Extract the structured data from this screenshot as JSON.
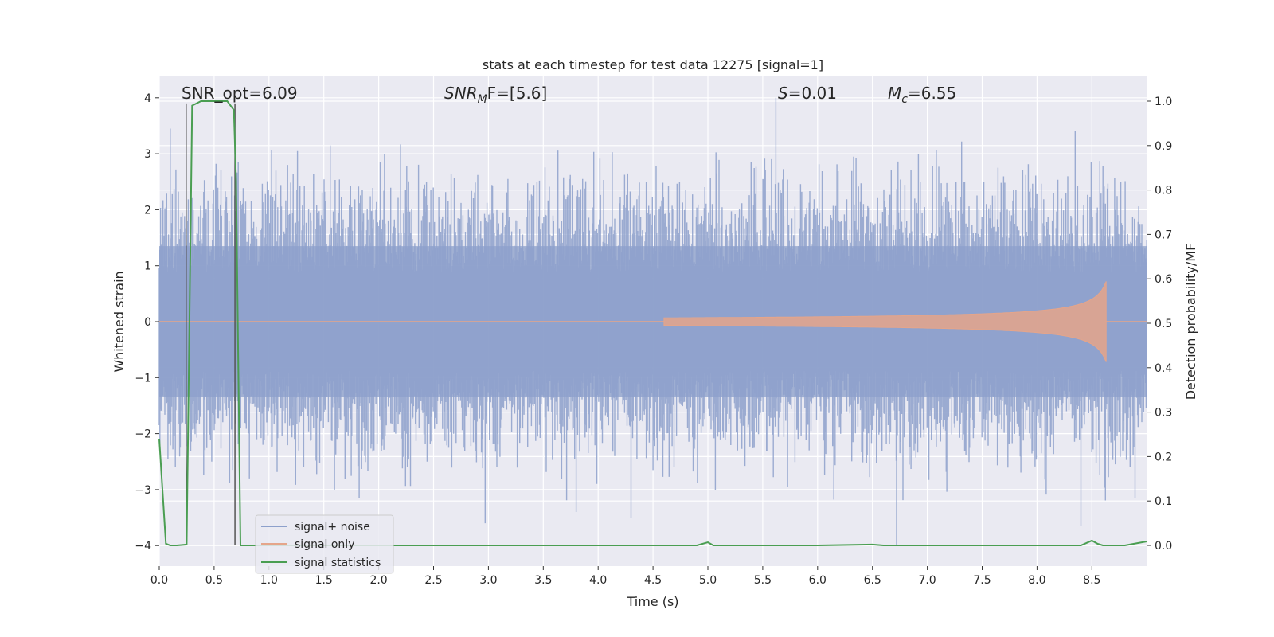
{
  "chart_data": {
    "type": "line",
    "title": "stats at each timestep for test data 12275 [signal=1]",
    "xlabel": "Time (s)",
    "ylabel_left": "Whitened strain",
    "ylabel_right": "Detection probability/MF",
    "xlim": [
      0,
      9.0
    ],
    "ylim_left": [
      -4.4,
      4.4
    ],
    "ylim_right": [
      -0.05,
      1.05
    ],
    "x_ticks": [
      0.0,
      0.5,
      1.0,
      1.5,
      2.0,
      2.5,
      3.0,
      3.5,
      4.0,
      4.5,
      5.0,
      5.5,
      6.0,
      6.5,
      7.0,
      7.5,
      8.0,
      8.5
    ],
    "x_tick_labels": [
      "0.0",
      "0.5",
      "1.0",
      "1.5",
      "2.0",
      "2.5",
      "3.0",
      "3.5",
      "4.0",
      "4.5",
      "5.0",
      "5.5",
      "6.0",
      "6.5",
      "7.0",
      "7.5",
      "8.0",
      "8.5"
    ],
    "y_ticks_left": [
      -4,
      -3,
      -2,
      -1,
      0,
      1,
      2,
      3,
      4
    ],
    "y_tick_labels_left": [
      "−4",
      "−3",
      "−2",
      "−1",
      "0",
      "1",
      "2",
      "3",
      "4"
    ],
    "y_ticks_right": [
      0.0,
      0.1,
      0.2,
      0.3,
      0.4,
      0.5,
      0.6,
      0.7,
      0.8,
      0.9,
      1.0
    ],
    "y_tick_labels_right": [
      "0.0",
      "0.1",
      "0.2",
      "0.3",
      "0.4",
      "0.5",
      "0.6",
      "0.7",
      "0.8",
      "0.9",
      "1.0"
    ],
    "grid": true,
    "legend_position": "lower-left",
    "annotations": {
      "snr_opt": "SNR_opt=6.09",
      "snr_mf_name": "SNR",
      "snr_mf_sub": "M",
      "snr_mf_rest": "F=[5.6]",
      "s_name": "S",
      "s_rest": "=0.01",
      "mc_name": "M",
      "mc_sub": "c",
      "mc_rest": "=6.55"
    },
    "series": [
      {
        "name": "signal+ noise",
        "color": "#8da0cb",
        "axis": "left",
        "kind": "noise",
        "amplitude_approx": 1.6,
        "extreme_values": [
          [
            0.1,
            3.45
          ],
          [
            5.62,
            4.0
          ],
          [
            6.72,
            -4.0
          ],
          [
            2.97,
            -3.6
          ],
          [
            3.8,
            -3.4
          ],
          [
            4.3,
            -3.5
          ],
          [
            8.4,
            -3.65
          ]
        ]
      },
      {
        "name": "signal only",
        "color": "#e5a58a",
        "axis": "left",
        "kind": "chirp",
        "start": 4.6,
        "peak_time": 8.63,
        "peak_amplitude": 0.72
      },
      {
        "name": "signal statistics",
        "color": "#4a9e52",
        "axis": "right",
        "kind": "line",
        "x": [
          0.0,
          0.06,
          0.1,
          0.16,
          0.25,
          0.3,
          0.38,
          0.45,
          0.55,
          0.62,
          0.68,
          0.7,
          0.74,
          0.8,
          1.0,
          2.0,
          3.0,
          4.0,
          4.9,
          5.0,
          5.05,
          5.1,
          5.2,
          6.0,
          6.5,
          6.6,
          7.0,
          8.0,
          8.4,
          8.5,
          8.55,
          8.6,
          8.8,
          9.0
        ],
        "y": [
          0.24,
          0.004,
          0.0,
          0.0,
          0.002,
          0.99,
          1.0,
          1.0,
          1.0,
          1.0,
          0.98,
          0.82,
          0.0,
          0.0,
          0.0,
          0.0,
          0.0,
          0.0,
          0.0,
          0.007,
          0.0,
          0.0,
          0.0,
          0.0,
          0.002,
          0.0,
          0.0,
          0.0,
          0.0,
          0.011,
          0.004,
          0.0,
          0.0,
          0.009
        ]
      }
    ],
    "vertical_markers": [
      {
        "x": 0.245,
        "color": "#555555"
      },
      {
        "x": 0.69,
        "color": "#555555"
      }
    ]
  }
}
